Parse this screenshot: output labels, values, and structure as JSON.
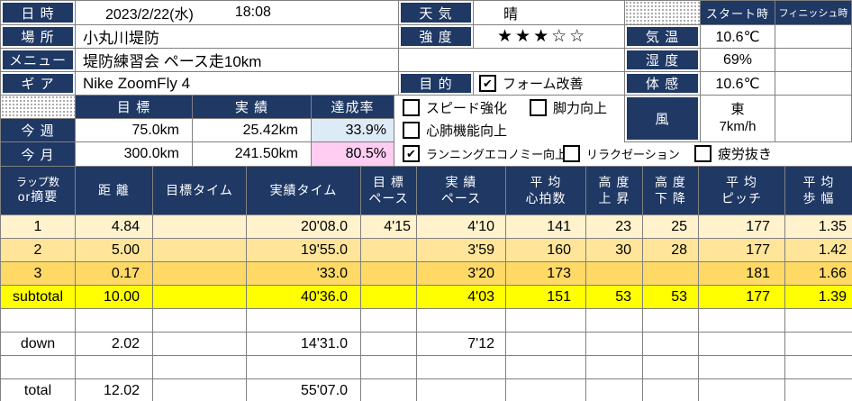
{
  "colors": {
    "navy": "#1F3864",
    "grid": "#808080",
    "lap_row1": "#FFF2CC",
    "lap_row2": "#FFE599",
    "lap_row3": "#FFD966",
    "subtotal_row": "#FFFF00",
    "rate_week_bg": "#DDEBF7",
    "rate_month_bg": "#FFCCF2"
  },
  "meta": {
    "labels": {
      "datetime": "日 時",
      "place": "場 所",
      "menu": "メニュー",
      "gear": "ギ ア",
      "weather": "天 気",
      "intensity": "強 度",
      "purpose": "目 的",
      "temp": "気 温",
      "humidity": "湿 度",
      "feels": "体 感",
      "wind": "風",
      "start": "スタート時",
      "finish": "フィニッシュ時"
    },
    "values": {
      "date": "2023/2/22(水)",
      "time": "18:08",
      "place": "小丸川堤防",
      "menu": "堤防練習会 ペース走10km",
      "gear": "Nike ZoomFly 4",
      "weather": "晴",
      "intensity": "★★★☆☆",
      "temp": "10.6℃",
      "humidity": "69%",
      "feels": "10.6℃",
      "wind_dir": "東",
      "wind_speed": "7km/h",
      "start_value": "",
      "finish_value": ""
    }
  },
  "goals": {
    "headers": {
      "target": "目  標",
      "actual": "実  績",
      "rate": "達成率"
    },
    "rows": [
      {
        "label": "今 週",
        "target": "75.0km",
        "actual": "25.42km",
        "rate": "33.9%"
      },
      {
        "label": "今 月",
        "target": "300.0km",
        "actual": "241.50km",
        "rate": "80.5%"
      }
    ]
  },
  "purposes": [
    {
      "label": "フォーム改善",
      "checked": true
    },
    {
      "label": "スピード強化",
      "checked": false
    },
    {
      "label": "脚力向上",
      "checked": false
    },
    {
      "label": "心肺機能向上",
      "checked": false
    },
    {
      "label": "ランニングエコノミー向上",
      "checked": true
    },
    {
      "label": "リラクゼーション",
      "checked": false
    },
    {
      "label": "疲労抜き",
      "checked": false
    }
  ],
  "lap_table": {
    "headers": [
      {
        "line1": "ラップ数",
        "line2": "or摘要"
      },
      {
        "line1": "距 離",
        "line2": ""
      },
      {
        "line1": "目標タイム",
        "line2": ""
      },
      {
        "line1": "実績タイム",
        "line2": ""
      },
      {
        "line1": "目 標",
        "line2": "ペース"
      },
      {
        "line1": "実 績",
        "line2": "ペース"
      },
      {
        "line1": "平 均",
        "line2": "心拍数"
      },
      {
        "line1": "高 度",
        "line2": "上 昇"
      },
      {
        "line1": "高 度",
        "line2": "下 降"
      },
      {
        "line1": "平 均",
        "line2": "ピッチ"
      },
      {
        "line1": "平 均",
        "line2": "歩 幅"
      }
    ],
    "rows": [
      {
        "cells": [
          "1",
          "4.84",
          "",
          "20'08.0",
          "4'15",
          "4'10",
          "141",
          "23",
          "25",
          "177",
          "1.35"
        ]
      },
      {
        "cells": [
          "2",
          "5.00",
          "",
          "19'55.0",
          "",
          "3'59",
          "160",
          "30",
          "28",
          "177",
          "1.42"
        ]
      },
      {
        "cells": [
          "3",
          "0.17",
          "",
          "'33.0",
          "",
          "3'20",
          "173",
          "",
          "",
          "181",
          "1.66"
        ]
      },
      {
        "cells": [
          "subtotal",
          "10.00",
          "",
          "40'36.0",
          "",
          "4'03",
          "151",
          "53",
          "53",
          "177",
          "1.39"
        ]
      },
      {
        "cells": [
          "",
          "",
          "",
          "",
          "",
          "",
          "",
          "",
          "",
          "",
          ""
        ]
      },
      {
        "cells": [
          "down",
          "2.02",
          "",
          "14'31.0",
          "",
          "7'12",
          "",
          "",
          "",
          "",
          ""
        ]
      },
      {
        "cells": [
          "",
          "",
          "",
          "",
          "",
          "",
          "",
          "",
          "",
          "",
          ""
        ]
      },
      {
        "cells": [
          "total",
          "12.02",
          "",
          "55'07.0",
          "",
          "",
          "",
          "",
          "",
          "",
          ""
        ]
      }
    ]
  }
}
